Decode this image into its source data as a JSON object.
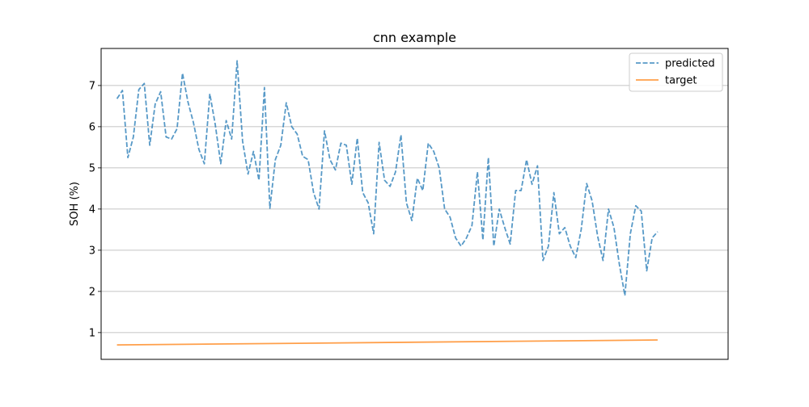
{
  "chart_data": {
    "type": "line",
    "title": "cnn example",
    "xlabel": "",
    "ylabel": "SOH (%)",
    "ylim": [
      0.35,
      7.9
    ],
    "xlim": [
      -2.9,
      111.9
    ],
    "x_ticks_visible": false,
    "yticks": [
      1,
      2,
      3,
      4,
      5,
      6,
      7
    ],
    "grid": "y",
    "legend_position": "upper right",
    "series": [
      {
        "name": "predicted",
        "style": "dashed",
        "color": "#1f77b4",
        "values": [
          6.68,
          6.88,
          5.25,
          5.75,
          6.9,
          7.05,
          5.55,
          6.55,
          6.85,
          5.75,
          5.7,
          5.95,
          7.3,
          6.6,
          6.1,
          5.45,
          5.1,
          6.8,
          6.05,
          5.1,
          6.15,
          5.7,
          7.6,
          5.65,
          4.85,
          5.4,
          4.7,
          6.95,
          4.02,
          5.2,
          5.55,
          6.58,
          6.0,
          5.82,
          5.28,
          5.2,
          4.4,
          4.0,
          5.9,
          5.2,
          4.95,
          5.6,
          5.55,
          4.6,
          5.72,
          4.4,
          4.15,
          3.4,
          5.62,
          4.7,
          4.55,
          4.9,
          5.8,
          4.15,
          3.72,
          4.75,
          4.45,
          5.6,
          5.4,
          5.0,
          4.0,
          3.8,
          3.3,
          3.1,
          3.3,
          3.6,
          4.9,
          3.25,
          5.25,
          3.1,
          4.0,
          3.55,
          3.15,
          4.45,
          4.45,
          5.2,
          4.6,
          5.05,
          2.75,
          3.1,
          4.4,
          3.4,
          3.55,
          3.1,
          2.82,
          3.5,
          4.62,
          4.2,
          3.35,
          2.75,
          4.0,
          3.55,
          2.65,
          1.9,
          3.4,
          4.08,
          3.95,
          2.5,
          3.3,
          3.45
        ]
      },
      {
        "name": "target",
        "style": "solid",
        "color": "#ff7f0e",
        "values": [
          0.7,
          0.82
        ]
      }
    ]
  }
}
